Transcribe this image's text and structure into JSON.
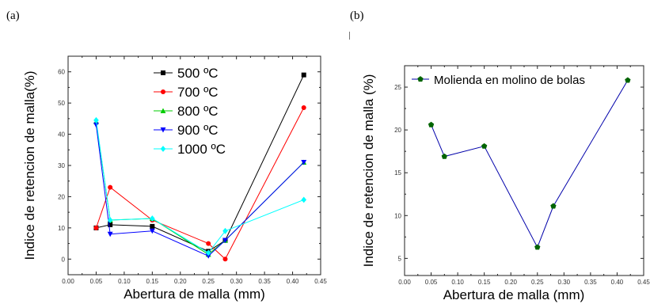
{
  "panels": {
    "a": "(a)",
    "b": "(b)"
  },
  "chart_data": [
    {
      "type": "line",
      "xlabel": "Abertura de malla (mm)",
      "ylabel": "Indice de retencion de malla(%)",
      "xlim": [
        0.0,
        0.45
      ],
      "ylim": [
        -5,
        65
      ],
      "xticks": [
        "0.00",
        "0.05",
        "0.10",
        "0.15",
        "0.20",
        "0.25",
        "0.30",
        "0.35",
        "0.40",
        "0.45"
      ],
      "yticks": [
        "0",
        "10",
        "20",
        "30",
        "40",
        "50",
        "60"
      ],
      "legend_position": "top-center",
      "x": [
        0.05,
        0.075,
        0.15,
        0.25,
        0.28,
        0.42
      ],
      "series": [
        {
          "name": "500 ºC",
          "color": "#000000",
          "marker": "square",
          "values": [
            10,
            11,
            10.5,
            2.5,
            6,
            59
          ]
        },
        {
          "name": "700 ºC",
          "color": "#ff0000",
          "marker": "circle",
          "values": [
            10,
            23,
            12.5,
            5,
            0,
            48.5
          ]
        },
        {
          "name": "800 ºC",
          "color": "#00cc00",
          "marker": "triangle-up",
          "values": [
            44,
            12.5,
            13,
            1.5,
            6,
            31
          ]
        },
        {
          "name": "900 ºC",
          "color": "#0000ff",
          "marker": "triangle-down",
          "values": [
            43,
            8,
            9,
            1,
            6,
            31
          ]
        },
        {
          "name": "1000 ºC",
          "color": "#00ffff",
          "marker": "diamond",
          "values": [
            44.5,
            12.5,
            13,
            2,
            9,
            19
          ]
        }
      ]
    },
    {
      "type": "line",
      "xlabel": "Abertura de malla (mm)",
      "ylabel": "Indice de retencion de malla (%)",
      "xlim": [
        0.0,
        0.45
      ],
      "ylim": [
        3,
        27.5
      ],
      "xticks": [
        "0.00",
        "0.05",
        "0.10",
        "0.15",
        "0.20",
        "0.25",
        "0.30",
        "0.35",
        "0.40",
        "0.45"
      ],
      "yticks": [
        "5",
        "10",
        "15",
        "20",
        "25"
      ],
      "legend_position": "top-left",
      "x": [
        0.05,
        0.075,
        0.15,
        0.25,
        0.28,
        0.42
      ],
      "series": [
        {
          "name": "Molienda en molino de bolas",
          "color": "#0000aa",
          "marker_color": "#006400",
          "marker": "pentagon",
          "values": [
            20.6,
            16.9,
            18.1,
            6.3,
            11.1,
            25.8
          ]
        }
      ]
    }
  ]
}
